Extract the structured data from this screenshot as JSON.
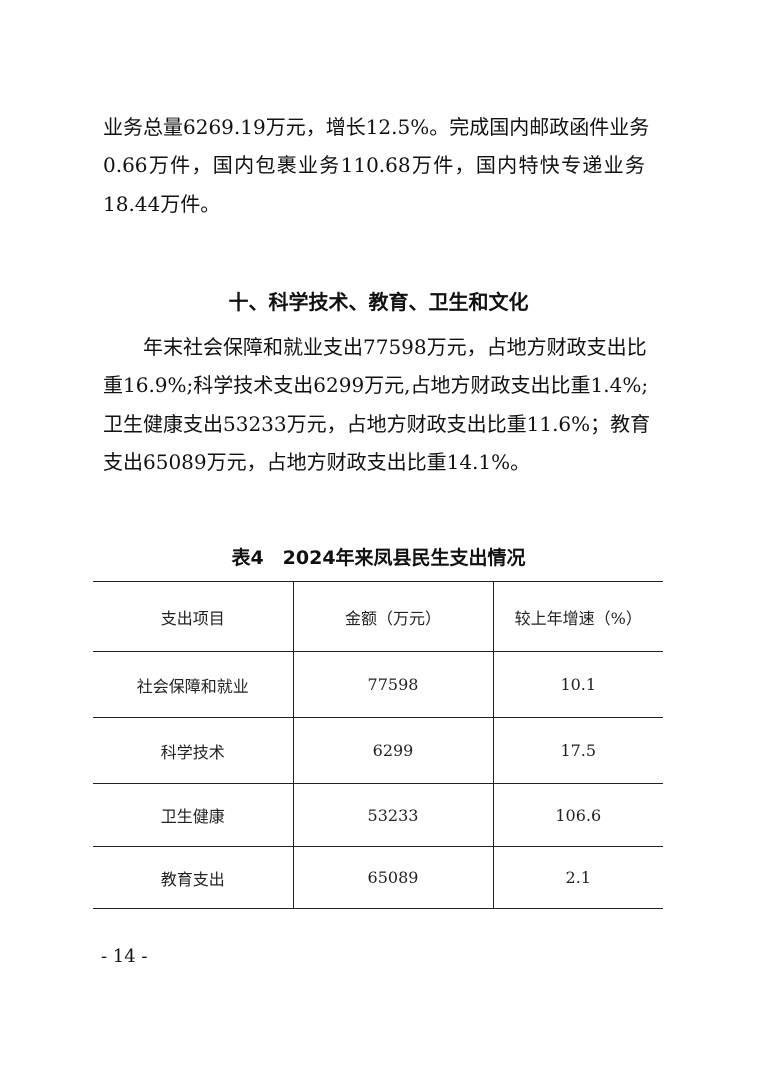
{
  "intro_lines": [
    "业务总量6269.19万元，增长12.5%。完成国内邮政函件业务",
    "0.66万件，国内包裹业务110.68万件，国内特快专递业务",
    "18.44万件。"
  ],
  "section_heading": "十、科学技术、教育、卫生和文化",
  "section_lines": [
    "　　年末社会保障和就业支出77598万元，占地方财政支出比",
    "重16.9%;科学技术支出6299万元,占地方财政支出比重1.4%;",
    "卫生健康支出53233万元，占地方财政支出比重11.6%；教育",
    "支出65089万元，占地方财政支出比重14.1%。"
  ],
  "table": {
    "title": "表4　2024年来凤县民生支出情况",
    "headers": [
      "支出项目",
      "金额（万元）",
      "较上年增速（%）"
    ],
    "rows": [
      [
        "社会保障和就业",
        "77598",
        "10.1"
      ],
      [
        "科学技术",
        "6299",
        "17.5"
      ],
      [
        "卫生健康",
        "53233",
        "106.6"
      ],
      [
        "教育支出",
        "65089",
        "2.1"
      ]
    ]
  },
  "page_number": "- 14 -"
}
